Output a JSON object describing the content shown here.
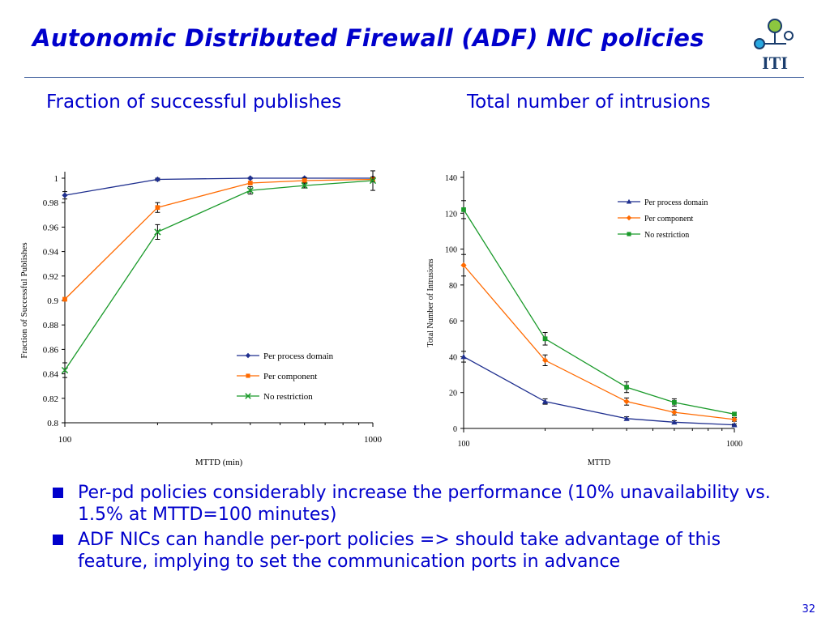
{
  "slide": {
    "title": "Autonomic Distributed Firewall (ADF) NIC policies",
    "logo_text": "ITI",
    "page_number": "32",
    "bullets": [
      "Per-pd policies considerably increase the performance (10% unavailability vs. 1.5% at MTTD=100 minutes)",
      "ADF NICs can handle per-port policies => should take advantage of this feature, implying to set the communication ports in advance"
    ]
  },
  "colors": {
    "text_blue": "#0000cc",
    "series_blue": "#1f2f8f",
    "series_orange": "#ff6a00",
    "series_green": "#1a9a2a",
    "logo_green": "#8cc63f",
    "logo_blue": "#29a8e0",
    "logo_dark": "#1a3d6d"
  },
  "chart_data": [
    {
      "type": "line",
      "heading": "Fraction of successful publishes",
      "xlabel": "MTTD (min)",
      "ylabel": "Fraction of Successful Publishes",
      "xscale": "log",
      "xlim": [
        100,
        1000
      ],
      "x_ticks": [
        "100",
        "1000"
      ],
      "ylim": [
        0.8,
        1
      ],
      "y_ticks": [
        "0.8",
        "0.82",
        "0.84",
        "0.86",
        "0.88",
        "0.9",
        "0.92",
        "0.94",
        "0.96",
        "0.98",
        "1"
      ],
      "legend_position": "lower-right",
      "grid": false,
      "series": [
        {
          "name": "Per process domain",
          "marker": "diamond",
          "color": "#1f2f8f",
          "x": [
            100,
            200,
            400,
            600,
            1000
          ],
          "y": [
            0.986,
            0.999,
            1.0,
            1.0,
            1.0
          ],
          "err": [
            0.003,
            0.001,
            0.0005,
            0.0005,
            0.0005
          ]
        },
        {
          "name": "Per component",
          "marker": "square",
          "color": "#ff6a00",
          "x": [
            100,
            200,
            400,
            600,
            1000
          ],
          "y": [
            0.901,
            0.976,
            0.996,
            0.998,
            0.999
          ],
          "err": [
            0.0,
            0.004,
            0.0,
            0.002,
            0.002
          ]
        },
        {
          "name": "No restriction",
          "marker": "x",
          "color": "#1a9a2a",
          "x": [
            100,
            200,
            400,
            600,
            1000
          ],
          "y": [
            0.843,
            0.956,
            0.99,
            0.994,
            0.998
          ],
          "err": [
            0.006,
            0.006,
            0.003,
            0.002,
            0.008
          ]
        }
      ]
    },
    {
      "type": "line",
      "heading": "Total number of intrusions",
      "xlabel": "MTTD",
      "ylabel": "Total Number of Intrusions",
      "xscale": "log",
      "xlim": [
        100,
        1000
      ],
      "x_ticks": [
        "100",
        "1000"
      ],
      "ylim": [
        0,
        140
      ],
      "y_ticks": [
        "0",
        "20",
        "40",
        "60",
        "80",
        "100",
        "120",
        "140"
      ],
      "legend_position": "top-right",
      "grid": false,
      "series": [
        {
          "name": "Per process domain",
          "marker": "triangle",
          "color": "#1f2f8f",
          "x": [
            100,
            200,
            400,
            600,
            1000
          ],
          "y": [
            40,
            15,
            5.5,
            3.5,
            2
          ],
          "err": [
            3,
            1.5,
            1,
            0.8,
            0.5
          ]
        },
        {
          "name": "Per component",
          "marker": "diamond",
          "color": "#ff6a00",
          "x": [
            100,
            200,
            400,
            600,
            1000
          ],
          "y": [
            91,
            38,
            15,
            9,
            5
          ],
          "err": [
            6,
            3,
            2,
            1.5,
            1
          ]
        },
        {
          "name": "No restriction",
          "marker": "square",
          "color": "#1a9a2a",
          "x": [
            100,
            200,
            400,
            600,
            1000
          ],
          "y": [
            122,
            50,
            23,
            14.5,
            8
          ],
          "err": [
            5,
            3.5,
            3,
            2,
            1
          ]
        }
      ]
    }
  ]
}
